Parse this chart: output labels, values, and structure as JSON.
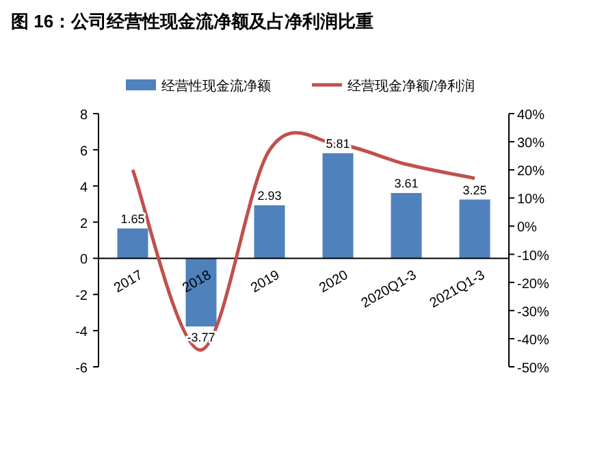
{
  "chart_data": {
    "type": "bar",
    "title": "图 16：公司经营性现金流净额及占净利润比重",
    "categories": [
      "2017",
      "2018",
      "2019",
      "2020",
      "2020Q1-3",
      "2021Q1-3"
    ],
    "series": [
      {
        "name": "经营性现金流净额",
        "color": "#4f81bd",
        "values": [
          1.65,
          -3.77,
          2.93,
          5.81,
          3.61,
          3.25
        ],
        "value_labels": [
          "1.65",
          "-3.77",
          "2.93",
          "5.81",
          "3.61",
          "3.25"
        ]
      },
      {
        "name": "经营现金净额/净利润",
        "type": "line",
        "axis": "y2",
        "color": "#c0504d",
        "values": [
          20,
          -44,
          27,
          29,
          22,
          17
        ]
      }
    ],
    "ylim": [
      -6,
      8
    ],
    "yticks": [
      -6,
      -4,
      -2,
      0,
      2,
      4,
      6,
      8
    ],
    "y2lim": [
      -50,
      40
    ],
    "y2ticks": [
      {
        "value": -50,
        "label": "-50%"
      },
      {
        "value": -40,
        "label": "-40%"
      },
      {
        "value": -30,
        "label": "-30%"
      },
      {
        "value": -20,
        "label": "-20%"
      },
      {
        "value": -10,
        "label": "-10%"
      },
      {
        "value": 0,
        "label": "0%"
      },
      {
        "value": 10,
        "label": "10%"
      },
      {
        "value": 20,
        "label": "20%"
      },
      {
        "value": 30,
        "label": "30%"
      },
      {
        "value": 40,
        "label": "40%"
      }
    ],
    "legend": "top",
    "grid": false,
    "marker": "none"
  }
}
